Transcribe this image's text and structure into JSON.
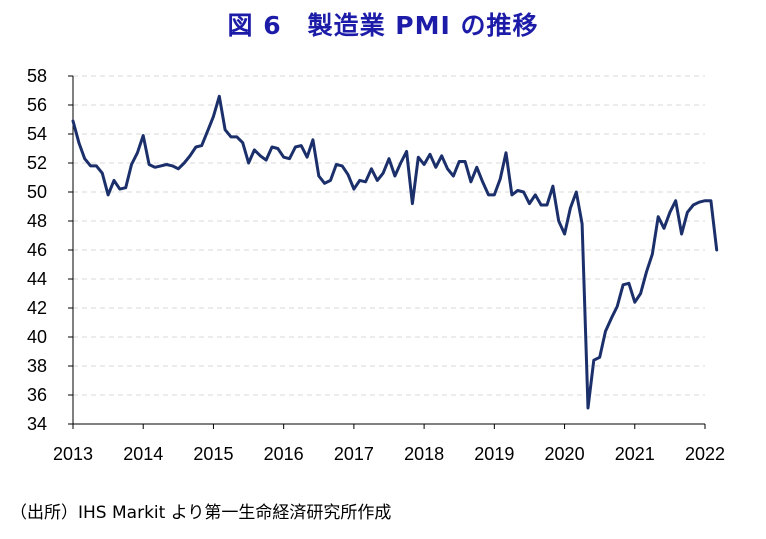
{
  "title": "図 6　製造業 PMI の推移",
  "source_note": "（出所）IHS Markit より第一生命経済研究所作成",
  "colors": {
    "line": "#1b2f6b",
    "grid": "#d9d9d9",
    "title": "#1c1ca8"
  },
  "chart_data": {
    "type": "line",
    "title": "図 6　製造業 PMI の推移",
    "xlabel": "",
    "ylabel": "",
    "xlim": [
      2013.0,
      2022.0
    ],
    "ylim": [
      34,
      58
    ],
    "yticks": [
      58,
      56,
      54,
      52,
      50,
      48,
      46,
      44,
      42,
      40,
      38,
      36,
      34
    ],
    "xticks": [
      "2013",
      "2014",
      "2015",
      "2016",
      "2017",
      "2018",
      "2019",
      "2020",
      "2021",
      "2022"
    ],
    "grid": "horizontal dashed",
    "legend": "none",
    "series": [
      {
        "start": "2013-01",
        "frequency": "monthly",
        "values": [
          54.9,
          53.4,
          52.3,
          51.8,
          51.8,
          51.3,
          49.8,
          50.8,
          50.2,
          50.3,
          51.9,
          52.7,
          53.9,
          51.9,
          51.7,
          51.8,
          51.9,
          51.8,
          51.6,
          52.0,
          52.5,
          53.1,
          53.2,
          54.2,
          55.2,
          56.6,
          54.3,
          53.8,
          53.8,
          53.4,
          52.0,
          52.9,
          52.5,
          52.2,
          53.1,
          53.0,
          52.4,
          52.3,
          53.1,
          53.2,
          52.4,
          53.6,
          51.1,
          50.6,
          50.8,
          51.9,
          51.8,
          51.2,
          50.2,
          50.8,
          50.7,
          51.6,
          50.8,
          51.3,
          52.3,
          51.1,
          52.0,
          52.8,
          49.2,
          52.4,
          51.9,
          52.6,
          51.7,
          52.5,
          51.6,
          51.1,
          52.1,
          52.1,
          50.7,
          51.7,
          50.7,
          49.8,
          49.8,
          50.9,
          52.7,
          49.8,
          50.1,
          50.0,
          49.2,
          49.8,
          49.1,
          49.1,
          50.4,
          48.0,
          47.1,
          48.9,
          50.0,
          47.8,
          35.1,
          38.4,
          38.6,
          40.4,
          41.3,
          42.1,
          43.6,
          43.7,
          42.4,
          43.0,
          44.5,
          45.7,
          48.3,
          47.5,
          48.6,
          49.4,
          47.1,
          48.6,
          49.1,
          49.3,
          49.4,
          49.4,
          46.0
        ]
      }
    ]
  }
}
